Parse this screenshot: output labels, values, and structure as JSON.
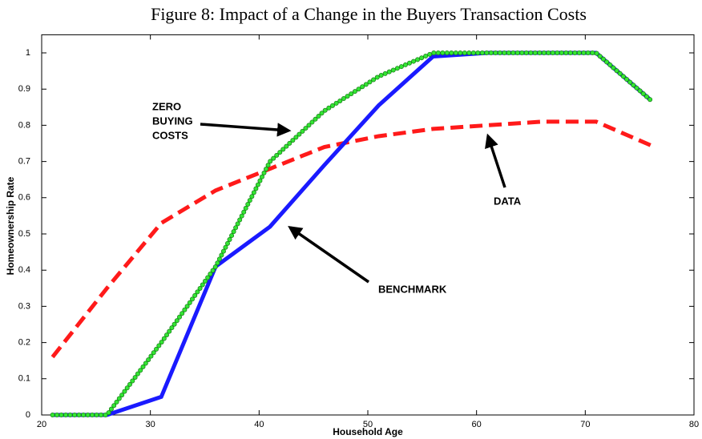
{
  "chart_data": {
    "type": "line",
    "title": "Figure 8: Impact of a Change in the Buyers Transaction Costs",
    "x_label": "Household Age",
    "y_label": "Homeownership Rate",
    "x": [
      21,
      26,
      31,
      36,
      41,
      46,
      51,
      56,
      61,
      66,
      71,
      76
    ],
    "series": [
      {
        "color": "#ff1a1a",
        "style": "dashed",
        "values": [
          0.16,
          0.35,
          0.53,
          0.62,
          0.68,
          0.74,
          0.77,
          0.79,
          0.8,
          0.81,
          0.81,
          0.745
        ]
      },
      {
        "color": "#1a1aff",
        "style": "solid",
        "values": [
          0,
          0,
          0.05,
          0.41,
          0.52,
          0.69,
          0.855,
          0.99,
          1,
          1,
          1,
          0.87
        ]
      },
      {
        "color": "#33e633",
        "style": "dotted",
        "values": [
          0,
          0,
          0.2,
          0.41,
          0.7,
          0.84,
          0.935,
          1,
          1,
          1,
          1,
          0.87
        ]
      }
    ],
    "annotations": [
      {
        "lines": [
          "ZERO",
          "BUYING",
          "COSTS"
        ]
      },
      {
        "lines": [
          "DATA"
        ]
      },
      {
        "lines": [
          "BENCHMARK"
        ]
      }
    ],
    "xlim": [
      20,
      80
    ],
    "xticks": [
      20,
      30,
      40,
      50,
      60,
      70,
      80
    ],
    "ylim": [
      0,
      1.05
    ],
    "yticks": [
      0,
      0.1,
      0.2,
      0.3,
      0.4,
      0.5,
      0.6,
      0.7,
      0.8,
      0.9,
      1
    ]
  }
}
